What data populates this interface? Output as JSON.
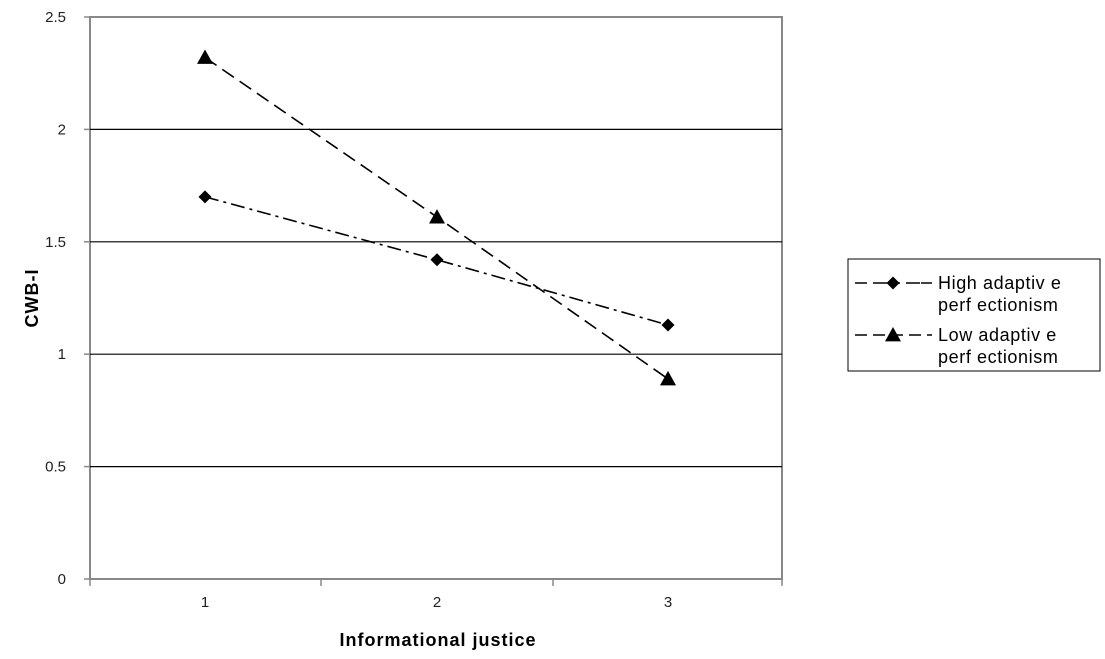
{
  "chart_data": {
    "type": "line",
    "title": "",
    "xlabel": "Informational justice",
    "ylabel": "CWB-I",
    "categories": [
      "1",
      "2",
      "3"
    ],
    "x": [
      1,
      2,
      3
    ],
    "ylim": [
      0,
      2.5
    ],
    "yticks": [
      "0",
      "0.5",
      "1",
      "1.5",
      "2",
      "2.5"
    ],
    "grid": "horizontal",
    "legend": "right",
    "series": [
      {
        "name_lines": [
          "High adaptiv e",
          "perf ectionism"
        ],
        "values": [
          1.7,
          1.42,
          1.13
        ],
        "marker": "diamond",
        "linestyle": "dash-dot",
        "color": "#000000"
      },
      {
        "name_lines": [
          "Low adaptiv e",
          "perf ectionism"
        ],
        "values": [
          2.32,
          1.61,
          0.89
        ],
        "marker": "triangle",
        "linestyle": "dashed",
        "color": "#000000"
      }
    ]
  }
}
